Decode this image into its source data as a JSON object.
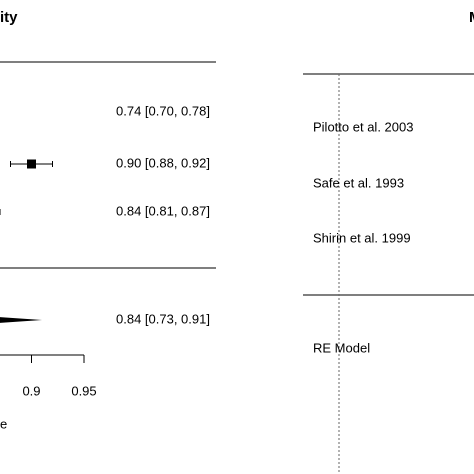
{
  "chart_data": [
    {
      "type": "forest",
      "title": "ity",
      "xlabel": "e",
      "values": [
        0.74,
        0.9,
        0.84
      ],
      "lower": [
        0.7,
        0.88,
        0.81
      ],
      "upper": [
        0.78,
        0.92,
        0.87
      ],
      "value_labels": [
        "0.74 [0.70, 0.78]",
        "0.90 [0.88, 0.92]",
        "0.84 [0.81, 0.87]"
      ],
      "summary": {
        "value": 0.84,
        "lower": 0.73,
        "upper": 0.91,
        "value_label": "0.84 [0.73, 0.91]"
      },
      "xlim": [
        0.87,
        0.95
      ],
      "xticks": [
        0.9,
        0.95
      ],
      "color": "#000000"
    },
    {
      "type": "forest",
      "title": "M",
      "categories": [
        "Pilotto et al. 2003",
        "Safe et al. 1993",
        "Shirin et al. 1999"
      ],
      "summary": {
        "label": "RE Model"
      }
    }
  ]
}
